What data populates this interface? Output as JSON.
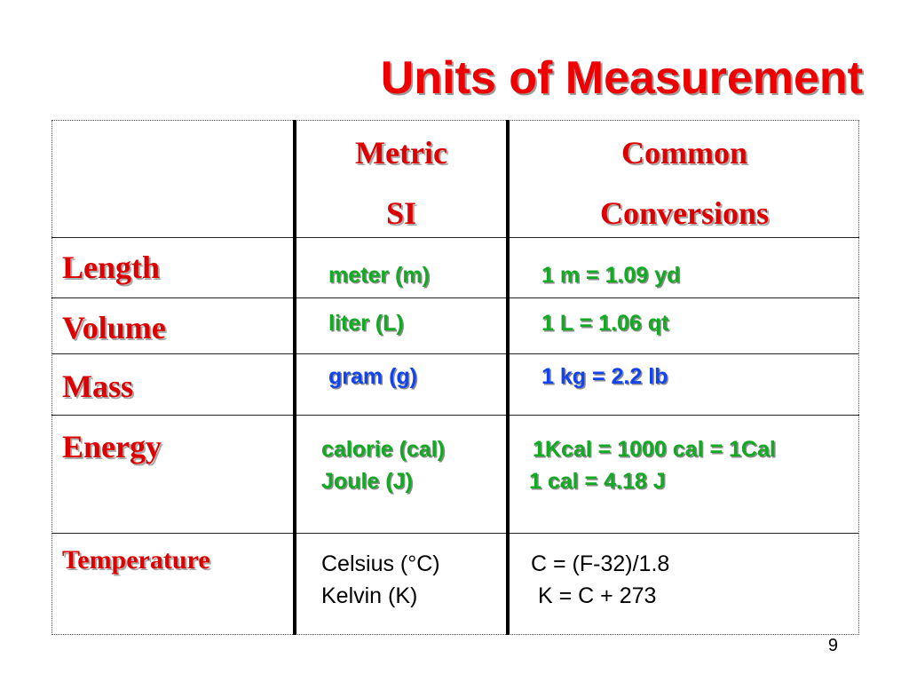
{
  "slide": {
    "title": "Units of Measurement",
    "page_number": "9"
  },
  "table": {
    "headers": {
      "metric_line1": "Metric",
      "metric_line2": "SI",
      "common_line1": "Common",
      "common_line2": "Conversions"
    },
    "rows": [
      {
        "label": "Length",
        "metric": [
          "meter (m)"
        ],
        "conversion": [
          "1 m = 1.09 yd"
        ],
        "color": "#11aa22"
      },
      {
        "label": "Volume",
        "metric": [
          "liter (L)"
        ],
        "conversion": [
          "1 L = 1.06 qt"
        ],
        "color": "#11aa22"
      },
      {
        "label": "Mass",
        "metric": [
          "gram (g)"
        ],
        "conversion": [
          "1 kg = 2.2 lb"
        ],
        "color": "#1144ee"
      },
      {
        "label": "Energy",
        "metric": [
          "calorie (cal)",
          "Joule (J)"
        ],
        "conversion": [
          "1Kcal = 1000 cal = 1Cal",
          "1 cal = 4.18 J"
        ],
        "color": "#11aa22"
      },
      {
        "label": "Temperature",
        "metric": [
          "Celsius (°C)",
          "Kelvin (K)"
        ],
        "conversion": [
          "C = (F-32)/1.8",
          "K = C + 273"
        ],
        "color": "#000000"
      }
    ]
  },
  "colors": {
    "title": "#ee0000",
    "header": "#dd0000",
    "green_text": "#11aa22",
    "blue_text": "#1144ee"
  }
}
